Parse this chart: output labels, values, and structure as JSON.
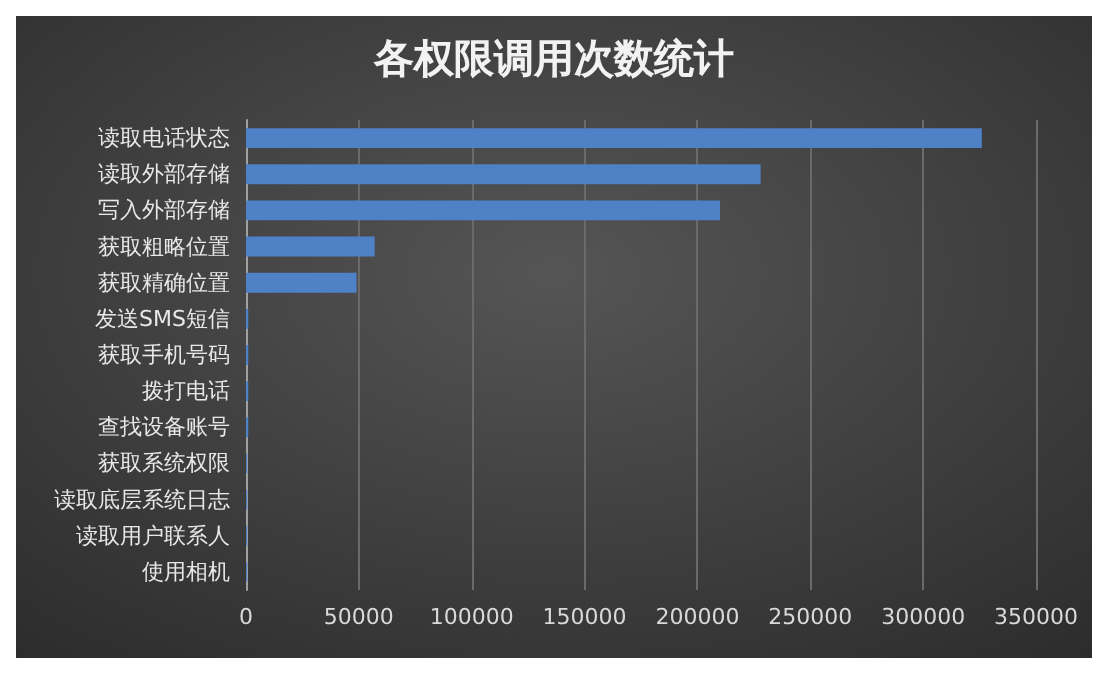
{
  "chart_data": {
    "type": "bar",
    "orientation": "horizontal",
    "title": "各权限调用次数统计",
    "categories": [
      "读取电话状态",
      "读取外部存储",
      "写入外部存储",
      "获取粗略位置",
      "获取精确位置",
      "发送SMS短信",
      "获取手机号码",
      "拨打电话",
      "查找设备账号",
      "获取系统权限",
      "读取底层系统日志",
      "读取用户联系人",
      "使用相机"
    ],
    "values": [
      326000,
      228000,
      210000,
      57000,
      49000,
      1000,
      1000,
      1000,
      1000,
      500,
      500,
      500,
      500
    ],
    "color": "#4f81c7",
    "xlim": [
      0,
      350000
    ],
    "xticks": [
      0,
      50000,
      100000,
      150000,
      200000,
      250000,
      300000,
      350000
    ],
    "grid": "x"
  }
}
